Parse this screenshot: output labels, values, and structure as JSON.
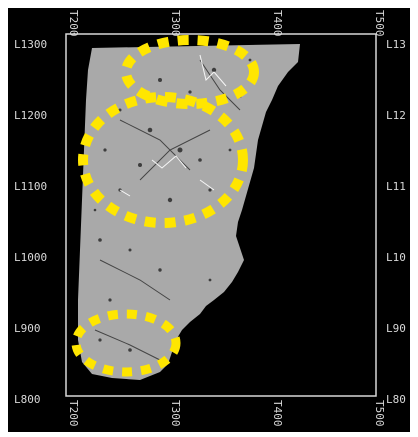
{
  "axes": {
    "top": [
      "T200",
      "T300",
      "T400",
      "T500"
    ],
    "bottom": [
      "T200",
      "T300",
      "T400",
      "T500"
    ],
    "left": [
      "L1300",
      "L1200",
      "L1100",
      "L1000",
      "L900",
      "L800"
    ],
    "right": [
      "L13",
      "L12",
      "L11",
      "L10",
      "L90",
      "L80"
    ]
  },
  "colors": {
    "background": "#000000",
    "map_gray": "#a9a9a9",
    "highlight": "#ffe600",
    "frame": "#d8d8d8"
  },
  "overlays": [
    {
      "name": "ellipse-top",
      "marker": "yellow-dotted-ellipse"
    },
    {
      "name": "ellipse-middle",
      "marker": "yellow-dotted-ellipse"
    },
    {
      "name": "ellipse-bottom",
      "marker": "yellow-dotted-ellipse"
    }
  ]
}
